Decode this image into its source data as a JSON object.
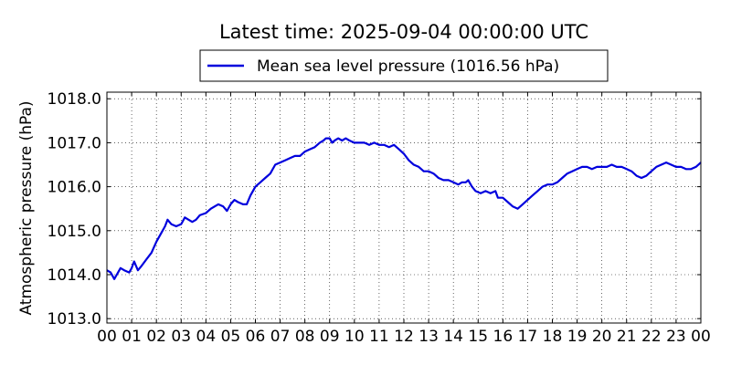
{
  "chart_data": {
    "type": "line",
    "title": "Latest time: 2025-09-04 00:00:00 UTC",
    "xlabel": "",
    "ylabel": "Atmospheric pressure (hPa)",
    "x_ticks": [
      "00",
      "01",
      "02",
      "03",
      "04",
      "05",
      "06",
      "07",
      "08",
      "09",
      "10",
      "11",
      "12",
      "13",
      "14",
      "15",
      "16",
      "17",
      "18",
      "19",
      "20",
      "21",
      "22",
      "23",
      "00"
    ],
    "y_ticks": [
      "1013.0",
      "1014.0",
      "1015.0",
      "1016.0",
      "1017.0",
      "1018.0"
    ],
    "xlim": [
      0,
      24
    ],
    "ylim": [
      1012.9,
      1018.15
    ],
    "grid": true,
    "legend_position": "top-center",
    "series": [
      {
        "name": "Mean sea level pressure (1016.56 hPa)",
        "color": "#0000dd",
        "points": [
          [
            0.0,
            1014.1
          ],
          [
            0.15,
            1014.05
          ],
          [
            0.3,
            1013.9
          ],
          [
            0.45,
            1014.05
          ],
          [
            0.55,
            1014.15
          ],
          [
            0.7,
            1014.1
          ],
          [
            0.9,
            1014.05
          ],
          [
            1.0,
            1014.15
          ],
          [
            1.1,
            1014.3
          ],
          [
            1.25,
            1014.1
          ],
          [
            1.4,
            1014.2
          ],
          [
            1.6,
            1014.35
          ],
          [
            1.8,
            1014.5
          ],
          [
            2.0,
            1014.75
          ],
          [
            2.2,
            1014.95
          ],
          [
            2.35,
            1015.1
          ],
          [
            2.45,
            1015.25
          ],
          [
            2.6,
            1015.15
          ],
          [
            2.8,
            1015.1
          ],
          [
            3.0,
            1015.15
          ],
          [
            3.15,
            1015.3
          ],
          [
            3.3,
            1015.25
          ],
          [
            3.45,
            1015.2
          ],
          [
            3.6,
            1015.25
          ],
          [
            3.75,
            1015.35
          ],
          [
            4.0,
            1015.4
          ],
          [
            4.2,
            1015.5
          ],
          [
            4.35,
            1015.55
          ],
          [
            4.5,
            1015.6
          ],
          [
            4.7,
            1015.55
          ],
          [
            4.85,
            1015.45
          ],
          [
            5.0,
            1015.6
          ],
          [
            5.15,
            1015.7
          ],
          [
            5.3,
            1015.65
          ],
          [
            5.5,
            1015.6
          ],
          [
            5.65,
            1015.6
          ],
          [
            5.8,
            1015.8
          ],
          [
            6.0,
            1016.0
          ],
          [
            6.2,
            1016.1
          ],
          [
            6.4,
            1016.2
          ],
          [
            6.6,
            1016.3
          ],
          [
            6.8,
            1016.5
          ],
          [
            7.0,
            1016.55
          ],
          [
            7.2,
            1016.6
          ],
          [
            7.4,
            1016.65
          ],
          [
            7.6,
            1016.7
          ],
          [
            7.8,
            1016.7
          ],
          [
            8.0,
            1016.8
          ],
          [
            8.2,
            1016.85
          ],
          [
            8.4,
            1016.9
          ],
          [
            8.6,
            1017.0
          ],
          [
            8.75,
            1017.05
          ],
          [
            8.85,
            1017.1
          ],
          [
            9.0,
            1017.1
          ],
          [
            9.1,
            1017.0
          ],
          [
            9.2,
            1017.05
          ],
          [
            9.35,
            1017.1
          ],
          [
            9.5,
            1017.05
          ],
          [
            9.65,
            1017.1
          ],
          [
            9.8,
            1017.05
          ],
          [
            10.0,
            1017.0
          ],
          [
            10.2,
            1017.0
          ],
          [
            10.4,
            1017.0
          ],
          [
            10.6,
            1016.95
          ],
          [
            10.8,
            1017.0
          ],
          [
            11.0,
            1016.95
          ],
          [
            11.2,
            1016.95
          ],
          [
            11.4,
            1016.9
          ],
          [
            11.6,
            1016.95
          ],
          [
            11.8,
            1016.85
          ],
          [
            12.0,
            1016.75
          ],
          [
            12.2,
            1016.6
          ],
          [
            12.4,
            1016.5
          ],
          [
            12.6,
            1016.45
          ],
          [
            12.8,
            1016.35
          ],
          [
            13.0,
            1016.35
          ],
          [
            13.2,
            1016.3
          ],
          [
            13.4,
            1016.2
          ],
          [
            13.6,
            1016.15
          ],
          [
            13.8,
            1016.15
          ],
          [
            14.0,
            1016.1
          ],
          [
            14.2,
            1016.05
          ],
          [
            14.35,
            1016.1
          ],
          [
            14.5,
            1016.1
          ],
          [
            14.6,
            1016.15
          ],
          [
            14.75,
            1016.0
          ],
          [
            14.9,
            1015.9
          ],
          [
            15.1,
            1015.85
          ],
          [
            15.3,
            1015.9
          ],
          [
            15.5,
            1015.85
          ],
          [
            15.7,
            1015.9
          ],
          [
            15.8,
            1015.75
          ],
          [
            16.0,
            1015.75
          ],
          [
            16.2,
            1015.65
          ],
          [
            16.4,
            1015.55
          ],
          [
            16.6,
            1015.5
          ],
          [
            16.8,
            1015.6
          ],
          [
            17.0,
            1015.7
          ],
          [
            17.2,
            1015.8
          ],
          [
            17.4,
            1015.9
          ],
          [
            17.6,
            1016.0
          ],
          [
            17.8,
            1016.05
          ],
          [
            18.0,
            1016.05
          ],
          [
            18.2,
            1016.1
          ],
          [
            18.4,
            1016.2
          ],
          [
            18.6,
            1016.3
          ],
          [
            18.8,
            1016.35
          ],
          [
            19.0,
            1016.4
          ],
          [
            19.2,
            1016.45
          ],
          [
            19.4,
            1016.45
          ],
          [
            19.6,
            1016.4
          ],
          [
            19.8,
            1016.45
          ],
          [
            20.0,
            1016.45
          ],
          [
            20.2,
            1016.45
          ],
          [
            20.4,
            1016.5
          ],
          [
            20.6,
            1016.45
          ],
          [
            20.8,
            1016.45
          ],
          [
            21.0,
            1016.4
          ],
          [
            21.2,
            1016.35
          ],
          [
            21.4,
            1016.25
          ],
          [
            21.6,
            1016.2
          ],
          [
            21.8,
            1016.25
          ],
          [
            22.0,
            1016.35
          ],
          [
            22.2,
            1016.45
          ],
          [
            22.4,
            1016.5
          ],
          [
            22.6,
            1016.55
          ],
          [
            22.8,
            1016.5
          ],
          [
            23.0,
            1016.45
          ],
          [
            23.2,
            1016.45
          ],
          [
            23.4,
            1016.4
          ],
          [
            23.6,
            1016.4
          ],
          [
            23.8,
            1016.45
          ],
          [
            24.0,
            1016.55
          ]
        ]
      }
    ]
  }
}
